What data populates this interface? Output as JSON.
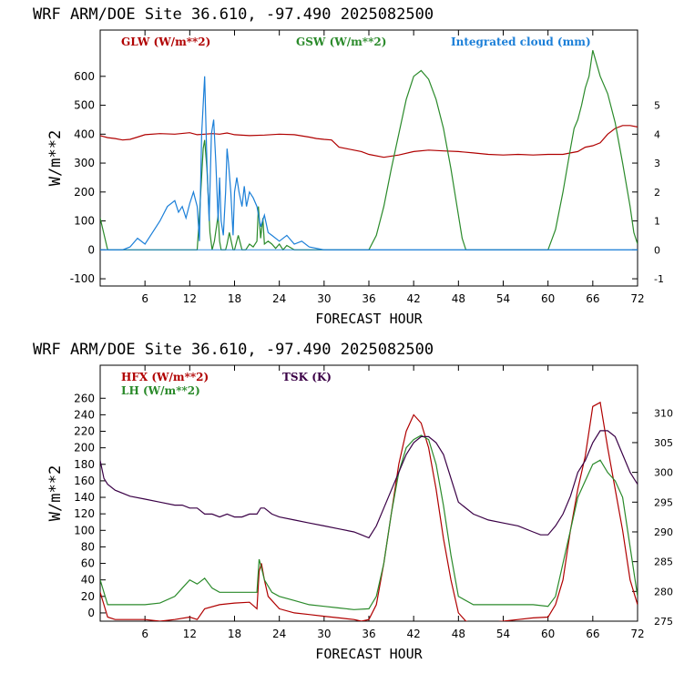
{
  "colors": {
    "red": "#b00000",
    "green": "#2a8a2a",
    "blue": "#1b7fd8",
    "purple": "#3a0046",
    "axis": "#000000"
  },
  "chart_data": [
    {
      "type": "line",
      "title": "WRF  ARM/DOE Site  36.610, -97.490  2025082500",
      "xlabel": "FORECAST HOUR",
      "ylabel": "W/m**2",
      "xlim": [
        0,
        72
      ],
      "ylim": [
        -125,
        760
      ],
      "xticks": [
        6,
        12,
        18,
        24,
        30,
        36,
        42,
        48,
        54,
        60,
        66,
        72
      ],
      "yticks": [
        -100,
        0,
        100,
        200,
        300,
        400,
        500,
        600
      ],
      "y2lim": [
        -1.25,
        7.6
      ],
      "y2ticks": [
        -1,
        0,
        1,
        2,
        3,
        4,
        5
      ],
      "series": [
        {
          "name": "GLW (W/m**2)",
          "axis": "left",
          "color": "red",
          "x": [
            0,
            1,
            2,
            3,
            4,
            5,
            6,
            8,
            10,
            12,
            13,
            14,
            15,
            16,
            17,
            18,
            20,
            22,
            24,
            26,
            28,
            29,
            30,
            31,
            32,
            33,
            34,
            35,
            36,
            38,
            40,
            42,
            44,
            46,
            48,
            50,
            52,
            54,
            56,
            58,
            60,
            62,
            63,
            64,
            65,
            66,
            67,
            68,
            69,
            70,
            71,
            72
          ],
          "y": [
            395,
            388,
            385,
            380,
            382,
            390,
            398,
            402,
            400,
            405,
            398,
            400,
            402,
            400,
            404,
            398,
            395,
            397,
            400,
            398,
            390,
            385,
            382,
            380,
            355,
            350,
            345,
            340,
            330,
            320,
            328,
            340,
            345,
            342,
            340,
            335,
            330,
            328,
            330,
            328,
            330,
            330,
            335,
            340,
            355,
            360,
            370,
            400,
            420,
            430,
            430,
            425
          ]
        },
        {
          "name": "GSW (W/m**2)",
          "axis": "left",
          "color": "green",
          "x": [
            0,
            1,
            12,
            13,
            13.3,
            13.8,
            14,
            14.3,
            14.7,
            15,
            15.3,
            15.8,
            16,
            16.2,
            16.8,
            17,
            17.3,
            17.8,
            18,
            18.5,
            19,
            19.5,
            20,
            20.5,
            21,
            21.2,
            21.5,
            21.8,
            22,
            22.5,
            23,
            23.5,
            24,
            24.5,
            25,
            26,
            36,
            37,
            38,
            39,
            40,
            41,
            42,
            43,
            44,
            45,
            46,
            47,
            48,
            48.5,
            49,
            60,
            61,
            62,
            63,
            63.5,
            64,
            64.5,
            65,
            65.5,
            66,
            67,
            68,
            69,
            70,
            71,
            71.5,
            72
          ],
          "y": [
            110,
            0,
            0,
            0,
            120,
            350,
            380,
            280,
            60,
            0,
            30,
            120,
            30,
            0,
            0,
            20,
            60,
            0,
            0,
            50,
            0,
            0,
            20,
            10,
            30,
            150,
            40,
            110,
            20,
            30,
            20,
            5,
            20,
            0,
            15,
            0,
            0,
            50,
            150,
            280,
            400,
            520,
            600,
            620,
            590,
            520,
            420,
            280,
            120,
            40,
            0,
            0,
            70,
            200,
            350,
            420,
            450,
            500,
            560,
            600,
            690,
            600,
            540,
            440,
            300,
            150,
            60,
            20
          ]
        },
        {
          "name": "Integrated cloud (mm)",
          "axis": "right",
          "color": "blue",
          "x": [
            0,
            3,
            4,
            5,
            6,
            7,
            8,
            9,
            10,
            10.5,
            11,
            11.5,
            12,
            12.5,
            13,
            13.3,
            13.6,
            14,
            14.3,
            14.6,
            14.9,
            15.2,
            15.5,
            15.8,
            16,
            16.2,
            16.5,
            16.8,
            17,
            17.2,
            17.5,
            17.8,
            18,
            18.3,
            18.6,
            19,
            19.3,
            19.6,
            20,
            20.5,
            21,
            21.5,
            22,
            22.5,
            23,
            24,
            25,
            26,
            27,
            28,
            29,
            30,
            31,
            72
          ],
          "y": [
            0,
            0,
            0.1,
            0.4,
            0.2,
            0.6,
            1.0,
            1.5,
            1.7,
            1.3,
            1.5,
            1.1,
            1.6,
            2.0,
            1.5,
            0.3,
            4.0,
            6.0,
            3.0,
            1.0,
            4.0,
            4.5,
            3.0,
            1.0,
            2.5,
            1.0,
            0.5,
            2.0,
            3.5,
            3.0,
            2.0,
            0.5,
            2.0,
            2.5,
            2.0,
            1.5,
            2.2,
            1.5,
            2.0,
            1.8,
            1.5,
            0.8,
            1.2,
            0.6,
            0.5,
            0.3,
            0.5,
            0.2,
            0.3,
            0.1,
            0.05,
            0,
            0,
            0
          ]
        }
      ]
    },
    {
      "type": "line",
      "title": "WRF  ARM/DOE Site  36.610, -97.490  2025082500",
      "xlabel": "FORECAST HOUR",
      "ylabel": "W/m**2",
      "xlim": [
        0,
        72
      ],
      "ylim": [
        -10,
        300
      ],
      "xticks": [
        6,
        12,
        18,
        24,
        30,
        36,
        42,
        48,
        54,
        60,
        66,
        72
      ],
      "yticks": [
        0,
        20,
        40,
        60,
        80,
        100,
        120,
        140,
        160,
        180,
        200,
        220,
        240,
        260
      ],
      "y2lim": [
        275,
        318
      ],
      "y2ticks": [
        275,
        280,
        285,
        290,
        295,
        300,
        305,
        310
      ],
      "series": [
        {
          "name": "HFX (W/m**2)",
          "axis": "left",
          "color": "red",
          "x": [
            0,
            1,
            2,
            4,
            6,
            8,
            10,
            12,
            13,
            14,
            16,
            18,
            20,
            21,
            21.3,
            21.6,
            22,
            22.5,
            23,
            24,
            26,
            28,
            30,
            32,
            34,
            35,
            36,
            37,
            38,
            39,
            40,
            41,
            42,
            43,
            44,
            45,
            46,
            47,
            48,
            49,
            50,
            52,
            54,
            56,
            58,
            60,
            61,
            62,
            63,
            64,
            65,
            66,
            67,
            68,
            69,
            70,
            71,
            72
          ],
          "y": [
            25,
            -5,
            -8,
            -8,
            -8,
            -10,
            -8,
            -5,
            -8,
            5,
            10,
            12,
            13,
            5,
            50,
            60,
            40,
            20,
            15,
            5,
            0,
            -2,
            -4,
            -6,
            -8,
            -10,
            -8,
            10,
            60,
            120,
            180,
            220,
            240,
            230,
            200,
            150,
            90,
            40,
            0,
            -10,
            -12,
            -12,
            -10,
            -8,
            -6,
            -5,
            10,
            40,
            100,
            150,
            190,
            250,
            255,
            200,
            150,
            100,
            40,
            10
          ]
        },
        {
          "name": "LH (W/m**2)",
          "axis": "left",
          "color": "green",
          "x": [
            0,
            1,
            4,
            6,
            8,
            10,
            11,
            12,
            13,
            14,
            15,
            16,
            18,
            20,
            21,
            21.3,
            21.6,
            22,
            23,
            24,
            26,
            28,
            30,
            32,
            34,
            36,
            37,
            38,
            39,
            40,
            41,
            42,
            43,
            44,
            45,
            46,
            47,
            48,
            50,
            52,
            54,
            56,
            58,
            60,
            61,
            62,
            63,
            64,
            65,
            66,
            67,
            68,
            69,
            70,
            71,
            72
          ],
          "y": [
            40,
            10,
            10,
            10,
            12,
            20,
            30,
            40,
            35,
            42,
            30,
            25,
            25,
            25,
            25,
            65,
            55,
            40,
            25,
            20,
            15,
            10,
            8,
            6,
            4,
            5,
            20,
            60,
            120,
            170,
            200,
            210,
            215,
            210,
            180,
            130,
            70,
            20,
            10,
            10,
            10,
            10,
            10,
            8,
            20,
            60,
            100,
            140,
            160,
            180,
            185,
            170,
            160,
            140,
            80,
            20
          ]
        },
        {
          "name": "TSK (K)",
          "axis": "right",
          "color": "purple",
          "x": [
            0,
            0.5,
            1,
            2,
            4,
            6,
            8,
            10,
            11,
            12,
            13,
            14,
            15,
            16,
            17,
            18,
            19,
            20,
            21,
            21.5,
            22,
            23,
            24,
            26,
            28,
            30,
            32,
            34,
            35,
            36,
            37,
            38,
            39,
            40,
            41,
            42,
            43,
            44,
            45,
            46,
            47,
            48,
            50,
            52,
            54,
            56,
            58,
            59,
            60,
            61,
            62,
            63,
            64,
            65,
            66,
            67,
            68,
            69,
            70,
            71,
            72
          ],
          "y": [
            302,
            299,
            298,
            297,
            296,
            295.5,
            295,
            294.5,
            294.5,
            294,
            294,
            293,
            293,
            292.5,
            293,
            292.5,
            292.5,
            293,
            293,
            294,
            294,
            293,
            292.5,
            292,
            291.5,
            291,
            290.5,
            290,
            289.5,
            289,
            291,
            294,
            297,
            300,
            303,
            305,
            306,
            306,
            305,
            303,
            299,
            295,
            293,
            292,
            291.5,
            291,
            290,
            289.5,
            289.5,
            291,
            293,
            296,
            300,
            302,
            305,
            307,
            307,
            306,
            303,
            300,
            298
          ]
        }
      ]
    }
  ]
}
